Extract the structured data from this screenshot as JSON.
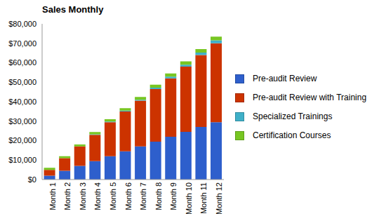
{
  "chart_data": {
    "type": "bar",
    "title": "Sales Monthly",
    "categories": [
      "Month 1",
      "Month 2",
      "Month 3",
      "Month 4",
      "Month 5",
      "Month 6",
      "Month 7",
      "Month 8",
      "Month 9",
      "Month 10",
      "Month 11",
      "Month 12"
    ],
    "series": [
      {
        "name": "Pre-audit Review",
        "color": "#2e5fcc",
        "values": [
          2000,
          4500,
          7000,
          9500,
          12000,
          14500,
          17000,
          19500,
          22000,
          24500,
          27000,
          29500
        ]
      },
      {
        "name": "Pre-audit Review with Training",
        "color": "#cc3300",
        "values": [
          3000,
          6500,
          10000,
          13500,
          17500,
          20500,
          23500,
          27000,
          30000,
          33500,
          37000,
          40500
        ]
      },
      {
        "name": "Specialized Trainings",
        "color": "#3fb0c8",
        "values": [
          0,
          0,
          0,
          200,
          300,
          400,
          500,
          700,
          900,
          1000,
          1200,
          1500
        ]
      },
      {
        "name": "Certification Courses",
        "color": "#77c622",
        "values": [
          1000,
          1000,
          1000,
          1200,
          1200,
          1300,
          1400,
          1500,
          1600,
          1700,
          1800,
          1900
        ]
      }
    ],
    "ylim": [
      0,
      80000
    ],
    "yticks": [
      {
        "value": 0,
        "label": "$0"
      },
      {
        "value": 10000,
        "label": "$10,000"
      },
      {
        "value": 20000,
        "label": "$20,000"
      },
      {
        "value": 30000,
        "label": "$30,000"
      },
      {
        "value": 40000,
        "label": "$40,000"
      },
      {
        "value": 50000,
        "label": "$50,000"
      },
      {
        "value": 60000,
        "label": "$60,000"
      },
      {
        "value": 70000,
        "label": "$70,000"
      },
      {
        "value": 80000,
        "label": "$80,000"
      }
    ],
    "stacked": true,
    "grid": false,
    "legend": "right"
  }
}
